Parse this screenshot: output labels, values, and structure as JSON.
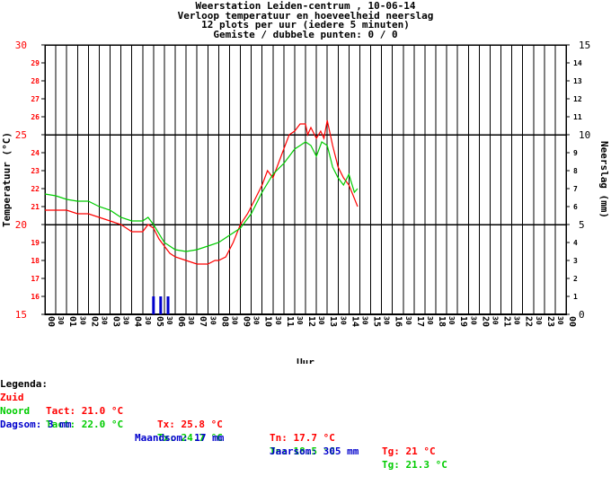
{
  "titles": {
    "line1": "Weerstation Leiden-centrum , 10-06-14",
    "line2": "Verloop temperatuur en hoeveelheid neerslag",
    "line3": "12 plots per uur (iedere 5 minuten)",
    "line4": "Gemiste / dubbele punten: 0 / 0"
  },
  "chart_data": {
    "type": "line",
    "xlabel": "Uur",
    "ylabel_left": "Temperatuur (°C)",
    "ylabel_right": "Neerslag (mm)",
    "ylim_left": [
      15,
      30
    ],
    "ylim_right": [
      0,
      15
    ],
    "xlim_hours": [
      0,
      24
    ],
    "grid": true,
    "x_ticks_hours": [
      "00",
      "01",
      "02",
      "03",
      "04",
      "05",
      "06",
      "07",
      "08",
      "09",
      "10",
      "11",
      "12",
      "13",
      "14",
      "15",
      "16",
      "17",
      "18",
      "19",
      "20",
      "21",
      "22",
      "23",
      "00"
    ],
    "x_ticks_half": "30",
    "y_ticks_left": [
      "15",
      "16",
      "17",
      "18",
      "19",
      "20",
      "21",
      "22",
      "23",
      "24",
      "25",
      "26",
      "27",
      "28",
      "29",
      "30"
    ],
    "y_ticks_right": [
      "0",
      "1",
      "2",
      "3",
      "4",
      "5",
      "6",
      "7",
      "8",
      "9",
      "10",
      "11",
      "12",
      "13",
      "14",
      "15"
    ],
    "series": [
      {
        "name": "Zuid",
        "color": "#ff0000",
        "x": [
          0,
          0.33,
          0.67,
          1.0,
          1.5,
          2.0,
          2.5,
          3.0,
          3.5,
          4.0,
          4.5,
          4.75,
          5.0,
          5.25,
          5.5,
          5.75,
          6.0,
          6.5,
          7.0,
          7.5,
          7.83,
          8.0,
          8.33,
          8.67,
          9.0,
          9.33,
          9.67,
          10.0,
          10.25,
          10.5,
          10.75,
          11.0,
          11.25,
          11.5,
          11.75,
          12.0,
          12.1,
          12.25,
          12.5,
          12.7,
          12.85,
          13.0,
          13.25,
          13.5,
          13.75,
          14.0,
          14.2,
          14.4
        ],
        "values": [
          20.8,
          20.8,
          20.8,
          20.8,
          20.6,
          20.6,
          20.4,
          20.2,
          20.0,
          19.6,
          19.6,
          20.0,
          19.8,
          19.2,
          18.8,
          18.4,
          18.2,
          18.0,
          17.8,
          17.8,
          18.0,
          18.0,
          18.2,
          19.0,
          20.0,
          20.6,
          21.4,
          22.2,
          23.0,
          22.6,
          23.4,
          24.2,
          25.0,
          25.2,
          25.6,
          25.6,
          25.0,
          25.4,
          24.8,
          25.2,
          24.8,
          25.8,
          24.4,
          23.2,
          22.6,
          22.2,
          21.6,
          21.0
        ]
      },
      {
        "name": "Noord",
        "color": "#00cc00",
        "x": [
          0,
          0.5,
          1.0,
          1.5,
          2.0,
          2.5,
          3.0,
          3.5,
          4.0,
          4.5,
          4.75,
          5.0,
          5.5,
          6.0,
          6.5,
          7.0,
          7.5,
          8.0,
          8.5,
          9.0,
          9.5,
          10.0,
          10.5,
          11.0,
          11.25,
          11.5,
          11.75,
          12.0,
          12.25,
          12.5,
          12.75,
          13.0,
          13.25,
          13.5,
          13.75,
          14.0,
          14.25,
          14.4
        ],
        "values": [
          21.7,
          21.6,
          21.4,
          21.3,
          21.3,
          21.0,
          20.8,
          20.4,
          20.2,
          20.2,
          20.4,
          20.0,
          19.0,
          18.6,
          18.5,
          18.6,
          18.8,
          19.0,
          19.4,
          19.8,
          20.6,
          21.8,
          22.8,
          23.4,
          23.8,
          24.2,
          24.4,
          24.6,
          24.4,
          23.8,
          24.6,
          24.4,
          23.2,
          22.6,
          22.2,
          22.8,
          21.8,
          22.0
        ]
      },
      {
        "name": "Neerslag",
        "type": "bar",
        "color": "#0000cc",
        "x": [
          5.0,
          5.33,
          5.67
        ],
        "values": [
          1.0,
          1.0,
          1.0
        ]
      }
    ]
  },
  "legend": {
    "title": "Legenda:",
    "zuid": {
      "name": "Zuid",
      "tact": "Tact: 21.0 °C",
      "tx": "Tx: 25.8 °C",
      "tn": "Tn: 17.7 °C",
      "tg": "Tg: 21 °C"
    },
    "noord": {
      "name": "Noord",
      "tact": "Tact: 22.0 °C",
      "tx": "Tx: 24.7 °C",
      "tn": "Tn: 18.5 °C",
      "tg": "Tg: 21.3 °C"
    },
    "dagsom": "Dagsom: 3 mm",
    "maandsom": "Maandsom: 17 mm",
    "jaarsom": "Jaarsom: 305 mm"
  },
  "colors": {
    "zuid": "#ff0000",
    "noord": "#00cc00",
    "rain": "#0000cc",
    "left_axis": "#ff0000"
  }
}
